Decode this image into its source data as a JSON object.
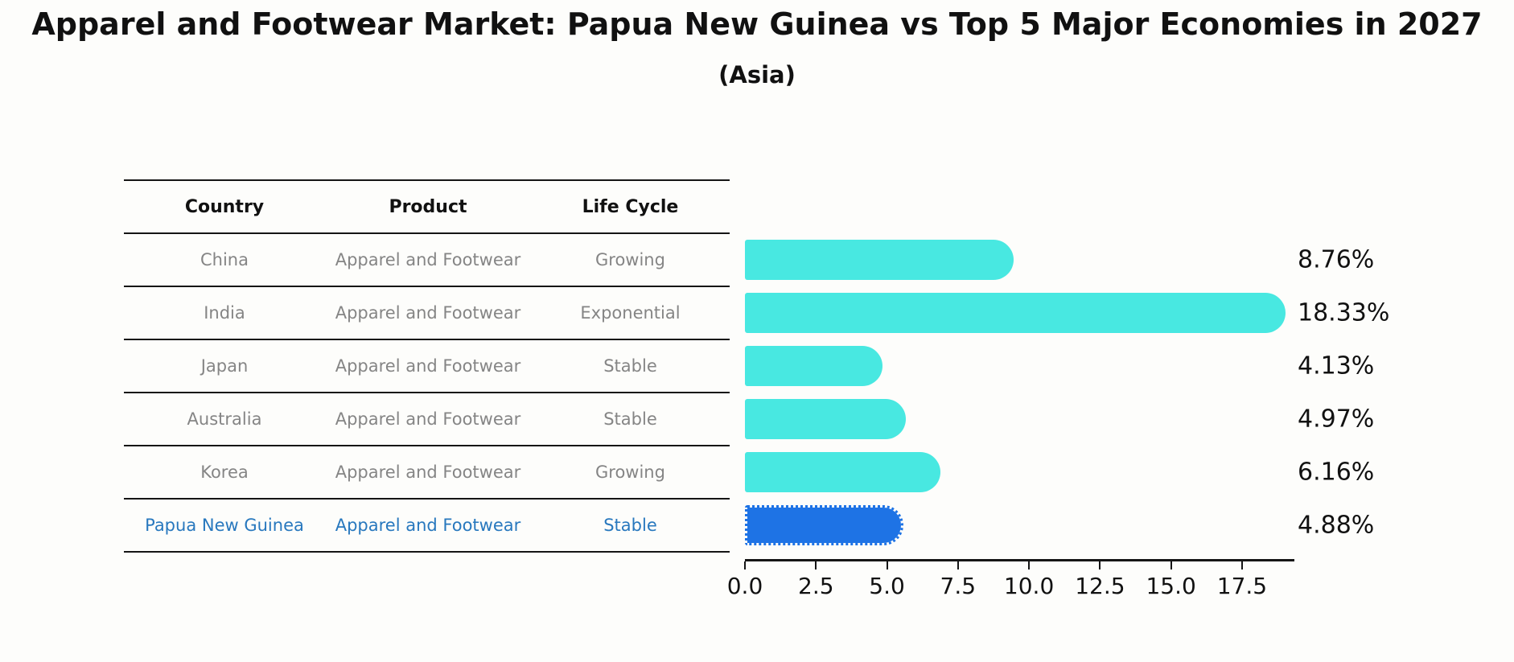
{
  "page": {
    "title": "Apparel and Footwear Market: Papua New Guinea vs Top 5 Major Economies in 2027",
    "subtitle": "(Asia)"
  },
  "table": {
    "headers": [
      "Country",
      "Product",
      "Life Cycle"
    ],
    "rows": [
      {
        "country": "China",
        "product": "Apparel and Footwear",
        "life_cycle": "Growing"
      },
      {
        "country": "India",
        "product": "Apparel and Footwear",
        "life_cycle": "Exponential"
      },
      {
        "country": "Japan",
        "product": "Apparel and Footwear",
        "life_cycle": "Stable"
      },
      {
        "country": "Australia",
        "product": "Apparel and Footwear",
        "life_cycle": "Stable"
      },
      {
        "country": "Korea",
        "product": "Apparel and Footwear",
        "life_cycle": "Growing"
      },
      {
        "country": "Papua New Guinea",
        "product": "Apparel and Footwear",
        "life_cycle": "Stable"
      }
    ],
    "highlight_row_index": 5
  },
  "chart_data": {
    "type": "bar",
    "orientation": "horizontal",
    "title": "Apparel and Footwear Market: Papua New Guinea vs Top 5 Major Economies in 2027",
    "subtitle": "(Asia)",
    "categories": [
      "China",
      "India",
      "Japan",
      "Australia",
      "Korea",
      "Papua New Guinea"
    ],
    "values": [
      8.76,
      18.33,
      4.13,
      4.97,
      6.16,
      4.88
    ],
    "value_labels": [
      "8.76%",
      "18.33%",
      "4.13%",
      "4.97%",
      "6.16%",
      "4.88%"
    ],
    "x_tick_values": [
      0.0,
      2.5,
      5.0,
      7.5,
      10.0,
      12.5,
      15.0,
      17.5
    ],
    "x_tick_labels": [
      "0.0",
      "2.5",
      "5.0",
      "7.5",
      "10.0",
      "12.5",
      "15.0",
      "17.5"
    ],
    "xlim": [
      0,
      19.3
    ],
    "highlight_index": 5,
    "bar_color": "#48E8E1",
    "highlight_bar_color": "#1E73E5",
    "grid": false,
    "legend": false
  },
  "colors": {
    "background": "#FDFDFB",
    "text_primary": "#111111",
    "text_muted": "#858585",
    "accent_text": "#2878BE",
    "axis_line": "#151515"
  }
}
